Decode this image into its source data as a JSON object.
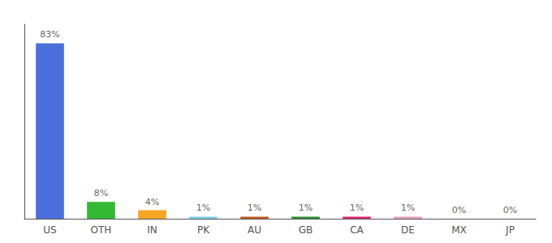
{
  "chart_data": {
    "type": "bar",
    "categories": [
      "US",
      "OTH",
      "IN",
      "PK",
      "AU",
      "GB",
      "CA",
      "DE",
      "MX",
      "JP"
    ],
    "values": [
      83,
      8,
      4,
      1,
      1,
      1,
      1,
      1,
      0,
      0
    ],
    "value_labels": [
      "83%",
      "8%",
      "4%",
      "1%",
      "1%",
      "1%",
      "1%",
      "1%",
      "0%",
      "0%"
    ],
    "colors": [
      "#4a6fda",
      "#33b833",
      "#f5a623",
      "#80d0f0",
      "#c05c20",
      "#2e8c2e",
      "#e0256e",
      "#e8a0b8",
      "#bbbbbb",
      "#bbbbbb"
    ],
    "ylim": [
      0,
      92
    ],
    "data_labels": true,
    "tick_labels": "x",
    "grid": false
  }
}
